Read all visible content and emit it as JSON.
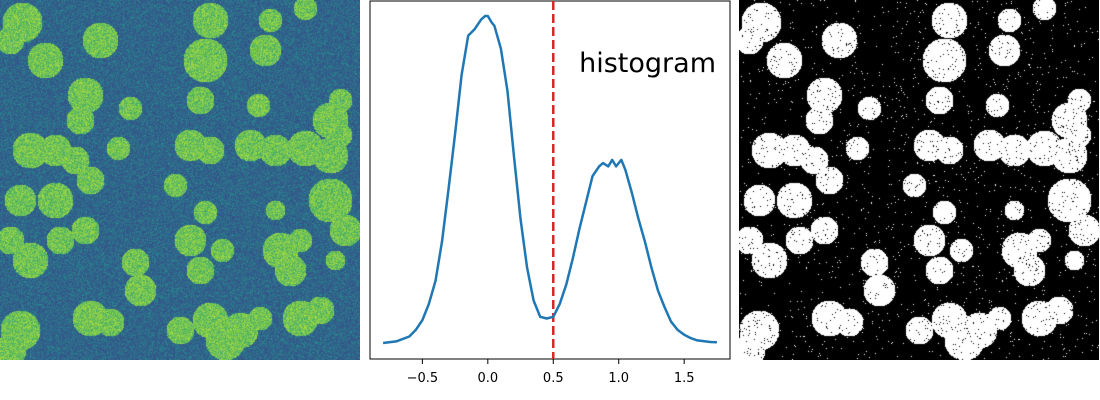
{
  "images": {
    "noisy_image": {
      "colormap": "viridis",
      "background": "#3a5a8c",
      "foreground": "#6cc96b"
    },
    "thresholded_image": {
      "colormap": "binary",
      "background": "#000000",
      "foreground": "#ffffff"
    }
  },
  "chart_data": {
    "type": "line",
    "title": "",
    "annotation": "histogram",
    "xlabel": "",
    "ylabel": "",
    "xlim": [
      -0.9,
      1.85
    ],
    "ylim": [
      0,
      1
    ],
    "xticks": [
      -0.5,
      0.0,
      0.5,
      1.0,
      1.5
    ],
    "xtick_labels": [
      "−0.5",
      "0.0",
      "0.5",
      "1.0",
      "1.5"
    ],
    "series": [
      {
        "color": "#1f77b4",
        "x": [
          -0.8,
          -0.7,
          -0.6,
          -0.55,
          -0.5,
          -0.45,
          -0.4,
          -0.35,
          -0.3,
          -0.25,
          -0.2,
          -0.15,
          -0.1,
          -0.05,
          -0.02,
          0.0,
          0.03,
          0.05,
          0.1,
          0.15,
          0.2,
          0.25,
          0.3,
          0.35,
          0.4,
          0.45,
          0.5,
          0.55,
          0.6,
          0.65,
          0.7,
          0.75,
          0.8,
          0.85,
          0.88,
          0.92,
          0.95,
          0.98,
          1.02,
          1.05,
          1.1,
          1.15,
          1.2,
          1.25,
          1.3,
          1.35,
          1.4,
          1.45,
          1.5,
          1.55,
          1.6,
          1.7,
          1.75
        ],
        "y": [
          0.0,
          0.005,
          0.02,
          0.04,
          0.07,
          0.12,
          0.19,
          0.31,
          0.47,
          0.64,
          0.82,
          0.94,
          0.96,
          0.99,
          1.0,
          1.0,
          0.98,
          0.97,
          0.9,
          0.77,
          0.57,
          0.38,
          0.23,
          0.13,
          0.08,
          0.075,
          0.08,
          0.12,
          0.18,
          0.26,
          0.35,
          0.43,
          0.51,
          0.54,
          0.55,
          0.54,
          0.56,
          0.54,
          0.56,
          0.53,
          0.46,
          0.38,
          0.31,
          0.23,
          0.16,
          0.11,
          0.065,
          0.04,
          0.025,
          0.015,
          0.008,
          0.003,
          0.002
        ]
      }
    ],
    "threshold": {
      "x": 0.5,
      "color": "#d62728",
      "style": "dashed"
    }
  }
}
